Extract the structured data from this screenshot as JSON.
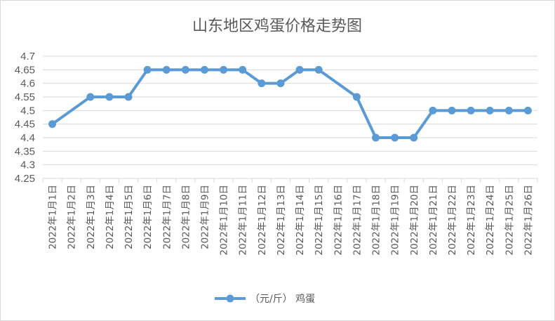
{
  "chart_data": {
    "type": "line",
    "title": "山东地区鸡蛋价格走势图",
    "categories": [
      "2022年1月1日",
      "2022年1月2日",
      "2022年1月3日",
      "2022年1月4日",
      "2022年1月5日",
      "2022年1月6日",
      "2022年1月7日",
      "2022年1月8日",
      "2022年1月9日",
      "2022年1月10日",
      "2022年1月11日",
      "2022年1月12日",
      "2022年1月13日",
      "2022年1月14日",
      "2022年1月15日",
      "2022年1月16日",
      "2022年1月17日",
      "2022年1月18日",
      "2022年1月19日",
      "2022年1月20日",
      "2022年1月21日",
      "2022年1月22日",
      "2022年1月23日",
      "2022年1月24日",
      "2022年1月25日",
      "2022年1月26日"
    ],
    "series": [
      {
        "name": "（元/斤） 鸡蛋",
        "values": [
          4.45,
          null,
          4.55,
          4.55,
          4.55,
          4.65,
          4.65,
          4.65,
          4.65,
          4.65,
          4.65,
          4.6,
          4.6,
          4.65,
          4.65,
          null,
          4.55,
          4.4,
          4.4,
          4.4,
          4.5,
          4.5,
          4.5,
          4.5,
          4.5,
          4.5
        ],
        "color": "#5b9bd5"
      }
    ],
    "ylim": [
      4.25,
      4.7
    ],
    "yticks": [
      "4.25",
      "4.3",
      "4.35",
      "4.4",
      "4.45",
      "4.5",
      "4.55",
      "4.6",
      "4.65",
      "4.7"
    ],
    "grid": true,
    "legend": "bottom",
    "gridColor": "#d9d9d9",
    "textColor": "#595959"
  }
}
